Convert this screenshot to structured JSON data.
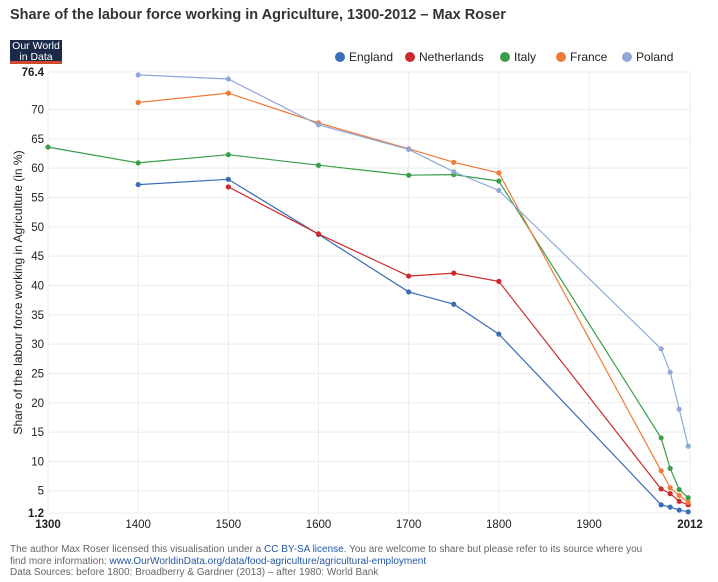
{
  "title": "Share of the labour force working in Agriculture, 1300-2012 – Max Roser",
  "logo": {
    "line1": "Our World",
    "line2": "in Data"
  },
  "footer": {
    "line1_pre": "The author Max Roser licensed this visualisation under a ",
    "license": "CC BY-SA license",
    "line1_post": ". You are welcome to share but please refer to its source where you",
    "line2_pre": "find more information: ",
    "url": "www.OurWorldinData.org/data/food-agriculture/agricultural-employment",
    "line3": "Data Sources: before 1800: Broadberry & Gardner (2013) – after 1980: World Bank"
  },
  "chart_data": {
    "type": "line",
    "title": "Share of the labour force working in Agriculture, 1300-2012 – Max Roser",
    "xlabel": "",
    "ylabel": "Share of the labour force working in Agriculture (in %)",
    "xlim": [
      1300,
      2012
    ],
    "ylim": [
      1.2,
      76.4
    ],
    "x_ticks": [
      1300,
      1400,
      1500,
      1600,
      1700,
      1800,
      1900,
      2012
    ],
    "x_ticks_bold": [
      1300,
      2012
    ],
    "y_ticks": [
      1.2,
      5,
      10,
      15,
      20,
      25,
      30,
      35,
      40,
      45,
      50,
      55,
      60,
      65,
      70,
      76.4
    ],
    "y_ticks_bold": [
      1.2,
      76.4
    ],
    "grid": true,
    "legend_position": "top-right",
    "series": [
      {
        "name": "England",
        "color": "#3a6db5",
        "points": [
          [
            1400,
            57.2
          ],
          [
            1500,
            58.1
          ],
          [
            1600,
            48.7
          ],
          [
            1700,
            38.9
          ],
          [
            1750,
            36.8
          ],
          [
            1800,
            31.7
          ],
          [
            1980,
            2.6
          ],
          [
            1990,
            2.2
          ],
          [
            2000,
            1.7
          ],
          [
            2010,
            1.4
          ]
        ]
      },
      {
        "name": "Netherlands",
        "color": "#cf2a2a",
        "points": [
          [
            1500,
            56.8
          ],
          [
            1600,
            48.8
          ],
          [
            1700,
            41.6
          ],
          [
            1750,
            42.1
          ],
          [
            1800,
            40.7
          ],
          [
            1980,
            5.3
          ],
          [
            1990,
            4.5
          ],
          [
            2000,
            3.2
          ],
          [
            2010,
            2.6
          ]
        ]
      },
      {
        "name": "Italy",
        "color": "#3a9e4a",
        "points": [
          [
            1300,
            63.6
          ],
          [
            1400,
            60.9
          ],
          [
            1500,
            62.3
          ],
          [
            1600,
            60.5
          ],
          [
            1700,
            58.8
          ],
          [
            1750,
            58.9
          ],
          [
            1800,
            57.8
          ],
          [
            1980,
            14.0
          ],
          [
            1990,
            8.8
          ],
          [
            2000,
            5.2
          ],
          [
            2010,
            3.8
          ]
        ]
      },
      {
        "name": "France",
        "color": "#f07a38",
        "points": [
          [
            1400,
            71.2
          ],
          [
            1500,
            72.8
          ],
          [
            1600,
            67.7
          ],
          [
            1700,
            63.3
          ],
          [
            1750,
            61.0
          ],
          [
            1800,
            59.2
          ],
          [
            1980,
            8.4
          ],
          [
            1990,
            5.5
          ],
          [
            2000,
            4.2
          ],
          [
            2010,
            3.0
          ]
        ]
      },
      {
        "name": "Poland",
        "color": "#8fa9d8",
        "points": [
          [
            1400,
            75.9
          ],
          [
            1500,
            75.2
          ],
          [
            1600,
            67.4
          ],
          [
            1700,
            63.2
          ],
          [
            1750,
            59.4
          ],
          [
            1800,
            56.2
          ],
          [
            1980,
            29.2
          ],
          [
            1990,
            25.2
          ],
          [
            2000,
            18.9
          ],
          [
            2010,
            12.6
          ]
        ]
      }
    ]
  }
}
